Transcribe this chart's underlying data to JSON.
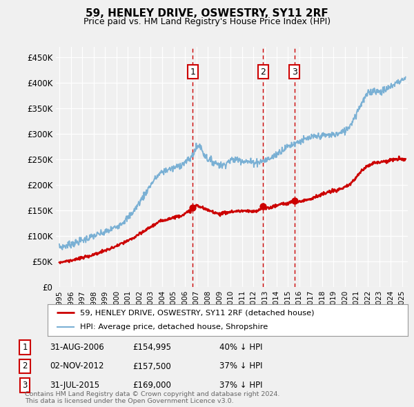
{
  "title": "59, HENLEY DRIVE, OSWESTRY, SY11 2RF",
  "subtitle": "Price paid vs. HM Land Registry's House Price Index (HPI)",
  "ylabel_ticks": [
    "£0",
    "£50K",
    "£100K",
    "£150K",
    "£200K",
    "£250K",
    "£300K",
    "£350K",
    "£400K",
    "£450K"
  ],
  "ytick_vals": [
    0,
    50000,
    100000,
    150000,
    200000,
    250000,
    300000,
    350000,
    400000,
    450000
  ],
  "ylim": [
    0,
    470000
  ],
  "xlim_start": 1994.7,
  "xlim_end": 2025.5,
  "background_color": "#f0f0f0",
  "plot_bg_color": "#f0f0f0",
  "grid_color": "#ffffff",
  "sale_points": [
    {
      "date_num": 2006.667,
      "value": 154995,
      "label": "1"
    },
    {
      "date_num": 2012.833,
      "value": 157500,
      "label": "2"
    },
    {
      "date_num": 2015.583,
      "value": 169000,
      "label": "3"
    }
  ],
  "legend_label_price": "59, HENLEY DRIVE, OSWESTRY, SY11 2RF (detached house)",
  "legend_label_hpi": "HPI: Average price, detached house, Shropshire",
  "hpi_line_color": "#7ab0d4",
  "price_line_color": "#cc0000",
  "dashed_vline_color": "#cc0000",
  "table_rows": [
    {
      "num": "1",
      "date": "31-AUG-2006",
      "price": "£154,995",
      "change": "40% ↓ HPI"
    },
    {
      "num": "2",
      "date": "02-NOV-2012",
      "price": "£157,500",
      "change": "37% ↓ HPI"
    },
    {
      "num": "3",
      "date": "31-JUL-2015",
      "price": "£169,000",
      "change": "37% ↓ HPI"
    }
  ],
  "footer": "Contains HM Land Registry data © Crown copyright and database right 2024.\nThis data is licensed under the Open Government Licence v3.0.",
  "hpi_anchors": [
    [
      1995.0,
      78000
    ],
    [
      1995.5,
      80000
    ],
    [
      1996.0,
      84000
    ],
    [
      1996.5,
      87000
    ],
    [
      1997.0,
      91000
    ],
    [
      1997.5,
      95000
    ],
    [
      1998.0,
      100000
    ],
    [
      1998.5,
      103000
    ],
    [
      1999.0,
      107000
    ],
    [
      1999.5,
      112000
    ],
    [
      2000.0,
      118000
    ],
    [
      2000.5,
      126000
    ],
    [
      2001.0,
      135000
    ],
    [
      2001.5,
      148000
    ],
    [
      2002.0,
      165000
    ],
    [
      2002.5,
      182000
    ],
    [
      2003.0,
      200000
    ],
    [
      2003.5,
      215000
    ],
    [
      2004.0,
      225000
    ],
    [
      2004.5,
      230000
    ],
    [
      2005.0,
      232000
    ],
    [
      2005.5,
      238000
    ],
    [
      2006.0,
      243000
    ],
    [
      2006.5,
      252000
    ],
    [
      2007.0,
      272000
    ],
    [
      2007.3,
      278000
    ],
    [
      2007.6,
      262000
    ],
    [
      2008.0,
      250000
    ],
    [
      2008.5,
      245000
    ],
    [
      2009.0,
      240000
    ],
    [
      2009.3,
      237000
    ],
    [
      2009.6,
      243000
    ],
    [
      2010.0,
      248000
    ],
    [
      2010.5,
      250000
    ],
    [
      2011.0,
      248000
    ],
    [
      2011.5,
      245000
    ],
    [
      2012.0,
      244000
    ],
    [
      2012.5,
      245000
    ],
    [
      2013.0,
      248000
    ],
    [
      2013.5,
      252000
    ],
    [
      2014.0,
      260000
    ],
    [
      2014.5,
      268000
    ],
    [
      2015.0,
      275000
    ],
    [
      2015.5,
      280000
    ],
    [
      2016.0,
      285000
    ],
    [
      2016.5,
      288000
    ],
    [
      2017.0,
      292000
    ],
    [
      2017.5,
      294000
    ],
    [
      2018.0,
      296000
    ],
    [
      2018.5,
      297000
    ],
    [
      2019.0,
      298000
    ],
    [
      2019.5,
      300000
    ],
    [
      2020.0,
      305000
    ],
    [
      2020.5,
      318000
    ],
    [
      2021.0,
      340000
    ],
    [
      2021.5,
      362000
    ],
    [
      2022.0,
      378000
    ],
    [
      2022.5,
      385000
    ],
    [
      2023.0,
      382000
    ],
    [
      2023.5,
      385000
    ],
    [
      2024.0,
      392000
    ],
    [
      2024.5,
      400000
    ],
    [
      2025.0,
      405000
    ],
    [
      2025.3,
      408000
    ]
  ],
  "price_anchors": [
    [
      1995.0,
      48000
    ],
    [
      1995.5,
      50000
    ],
    [
      1996.0,
      52000
    ],
    [
      1996.5,
      54000
    ],
    [
      1997.0,
      57000
    ],
    [
      1997.5,
      60000
    ],
    [
      1998.0,
      63000
    ],
    [
      1998.5,
      67000
    ],
    [
      1999.0,
      71000
    ],
    [
      1999.5,
      75000
    ],
    [
      2000.0,
      80000
    ],
    [
      2000.5,
      85000
    ],
    [
      2001.0,
      90000
    ],
    [
      2001.5,
      96000
    ],
    [
      2002.0,
      103000
    ],
    [
      2002.5,
      110000
    ],
    [
      2003.0,
      118000
    ],
    [
      2003.5,
      124000
    ],
    [
      2004.0,
      130000
    ],
    [
      2004.5,
      133000
    ],
    [
      2005.0,
      136000
    ],
    [
      2005.5,
      139000
    ],
    [
      2006.0,
      143000
    ],
    [
      2006.5,
      150000
    ],
    [
      2006.667,
      154995
    ],
    [
      2007.0,
      160000
    ],
    [
      2007.5,
      155000
    ],
    [
      2008.0,
      150000
    ],
    [
      2008.5,
      147000
    ],
    [
      2009.0,
      143000
    ],
    [
      2009.5,
      145000
    ],
    [
      2010.0,
      147000
    ],
    [
      2010.5,
      148000
    ],
    [
      2011.0,
      149000
    ],
    [
      2011.5,
      148000
    ],
    [
      2012.0,
      147000
    ],
    [
      2012.5,
      150000
    ],
    [
      2012.833,
      157500
    ],
    [
      2013.0,
      153000
    ],
    [
      2013.5,
      156000
    ],
    [
      2014.0,
      159000
    ],
    [
      2014.5,
      163000
    ],
    [
      2015.0,
      163000
    ],
    [
      2015.583,
      169000
    ],
    [
      2016.0,
      167000
    ],
    [
      2016.5,
      170000
    ],
    [
      2017.0,
      173000
    ],
    [
      2017.5,
      177000
    ],
    [
      2018.0,
      181000
    ],
    [
      2018.5,
      185000
    ],
    [
      2019.0,
      188000
    ],
    [
      2019.5,
      191000
    ],
    [
      2020.0,
      194000
    ],
    [
      2020.5,
      202000
    ],
    [
      2021.0,
      215000
    ],
    [
      2021.5,
      228000
    ],
    [
      2022.0,
      238000
    ],
    [
      2022.5,
      243000
    ],
    [
      2023.0,
      244000
    ],
    [
      2023.5,
      246000
    ],
    [
      2024.0,
      248000
    ],
    [
      2024.5,
      250000
    ],
    [
      2025.0,
      250000
    ],
    [
      2025.3,
      250000
    ]
  ]
}
